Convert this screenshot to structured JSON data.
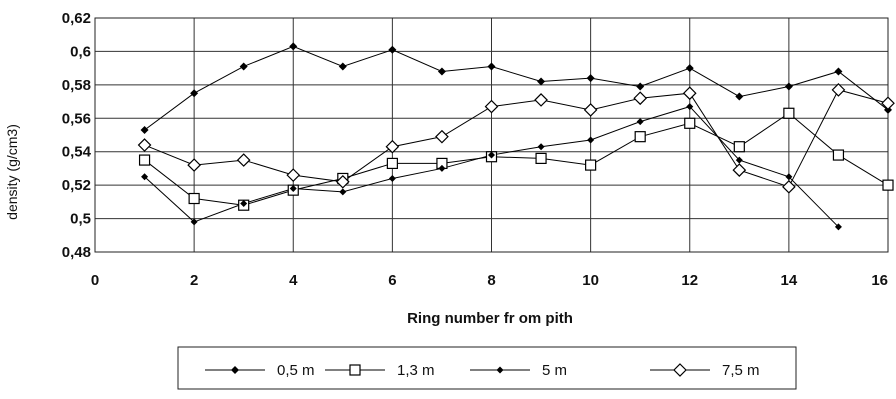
{
  "chart_data": {
    "type": "line",
    "xlabel": "Ring number fr om pith",
    "ylabel": "density (g/cm3)",
    "xlim": [
      0,
      16
    ],
    "ylim": [
      0.48,
      0.62
    ],
    "xticks": [
      0,
      2,
      4,
      6,
      8,
      10,
      12,
      14,
      16
    ],
    "xtick_labels": [
      "0",
      "2",
      "4",
      "6",
      "8",
      "10",
      "12",
      "14",
      "16"
    ],
    "yticks": [
      0.48,
      0.5,
      0.52,
      0.54,
      0.56,
      0.58,
      0.6,
      0.62
    ],
    "ytick_labels": [
      "0,48",
      "0,5",
      "0,52",
      "0,54",
      "0,56",
      "0,58",
      "0,6",
      "0,62"
    ],
    "grid": true,
    "legend_position": "bottom",
    "series": [
      {
        "name": "0,5 m",
        "marker": "diamond-filled",
        "color": "#000000",
        "x": [
          1,
          2,
          3,
          4,
          5,
          6,
          7,
          8,
          9,
          10,
          11,
          12,
          13,
          14,
          15,
          16
        ],
        "values": [
          0.553,
          0.575,
          0.591,
          0.603,
          0.591,
          0.601,
          0.588,
          0.591,
          0.582,
          0.584,
          0.579,
          0.59,
          0.573,
          0.579,
          0.588,
          0.565
        ]
      },
      {
        "name": "1,3 m",
        "marker": "square-open",
        "color": "#000000",
        "x": [
          1,
          2,
          3,
          4,
          5,
          6,
          7,
          8,
          9,
          10,
          11,
          12,
          13,
          14,
          15,
          16
        ],
        "values": [
          0.535,
          0.512,
          0.508,
          0.517,
          0.524,
          0.533,
          0.533,
          0.537,
          0.536,
          0.532,
          0.549,
          0.557,
          0.543,
          0.563,
          0.538,
          0.52
        ]
      },
      {
        "name": "5 m",
        "marker": "diamond-filled-small",
        "color": "#000000",
        "x": [
          1,
          2,
          3,
          4,
          5,
          6,
          7,
          8,
          9,
          10,
          11,
          12,
          13,
          14,
          15
        ],
        "values": [
          0.525,
          0.498,
          0.509,
          0.518,
          0.516,
          0.524,
          0.53,
          0.538,
          0.543,
          0.547,
          0.558,
          0.567,
          0.535,
          0.525,
          0.495
        ]
      },
      {
        "name": "7,5 m",
        "marker": "diamond-open",
        "color": "#000000",
        "x": [
          1,
          2,
          3,
          4,
          5,
          6,
          7,
          8,
          9,
          10,
          11,
          12,
          13,
          14,
          15,
          16
        ],
        "values": [
          0.544,
          0.532,
          0.535,
          0.526,
          0.522,
          0.543,
          0.549,
          0.567,
          0.571,
          0.565,
          0.572,
          0.575,
          0.529,
          0.519,
          0.577,
          0.569
        ]
      }
    ]
  }
}
